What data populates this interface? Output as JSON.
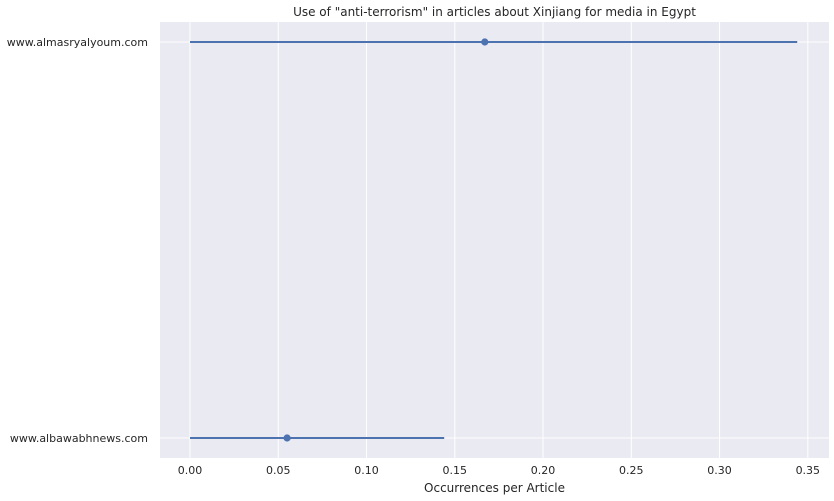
{
  "chart_data": {
    "type": "point",
    "title": "Use of \"anti-terrorism\" in articles about Xinjiang for media in Egypt",
    "xlabel": "Occurrences per Article",
    "ylabel": "",
    "xlim": [
      -0.017,
      0.362
    ],
    "xticks": [
      0.0,
      0.05,
      0.1,
      0.15,
      0.2,
      0.25,
      0.3,
      0.35
    ],
    "xtick_labels": [
      "0.00",
      "0.05",
      "0.10",
      "0.15",
      "0.20",
      "0.25",
      "0.30",
      "0.35"
    ],
    "categories": [
      "www.almasryalyoum.com",
      "www.albawabhnews.com"
    ],
    "values": [
      0.167,
      0.055
    ],
    "ci_low": [
      0.0,
      0.0
    ],
    "ci_high": [
      0.344,
      0.144
    ],
    "grid": true,
    "colors": {
      "background": "#eaeaf2",
      "grid": "#ffffff",
      "series": "#4c72b0",
      "text": "#262626"
    }
  }
}
